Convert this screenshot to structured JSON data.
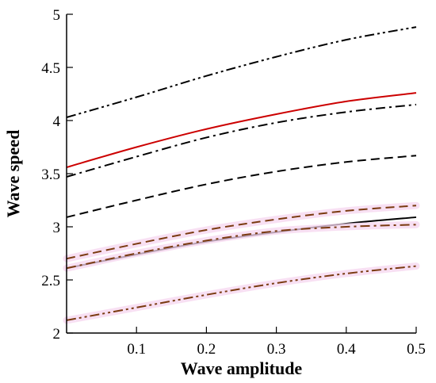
{
  "chart_data": {
    "type": "line",
    "title": "",
    "xlabel": "Wave amplitude",
    "ylabel": "Wave speed",
    "xlim": [
      0,
      0.5
    ],
    "ylim": [
      2,
      5
    ],
    "x_ticks": [
      0.1,
      0.2,
      0.3,
      0.4,
      0.5
    ],
    "x_tick_labels": [
      "0.1",
      "0.2",
      "0.3",
      "0.4",
      "0.5"
    ],
    "y_ticks": [
      2,
      2.5,
      3,
      3.5,
      4,
      4.5,
      5
    ],
    "y_tick_labels": [
      "2",
      "2.5",
      "3",
      "3.5",
      "4",
      "4.5",
      "5"
    ],
    "grid": false,
    "legend": "none",
    "series": [
      {
        "x": [
          0,
          0.1,
          0.2,
          0.3,
          0.4,
          0.5
        ],
        "values": [
          4.03,
          4.22,
          4.42,
          4.6,
          4.76,
          4.88
        ],
        "color": "#000000",
        "dash": "dash-dot-dot",
        "halo": false
      },
      {
        "x": [
          0,
          0.1,
          0.2,
          0.3,
          0.4,
          0.5
        ],
        "values": [
          3.56,
          3.75,
          3.92,
          4.06,
          4.18,
          4.26
        ],
        "color": "#cc0000",
        "dash": "solid",
        "halo": false
      },
      {
        "x": [
          0,
          0.1,
          0.2,
          0.3,
          0.4,
          0.5
        ],
        "values": [
          3.47,
          3.66,
          3.84,
          3.98,
          4.08,
          4.15
        ],
        "color": "#000000",
        "dash": "dash-dot",
        "halo": false
      },
      {
        "x": [
          0,
          0.1,
          0.2,
          0.3,
          0.4,
          0.5
        ],
        "values": [
          3.09,
          3.25,
          3.4,
          3.52,
          3.61,
          3.67
        ],
        "color": "#000000",
        "dash": "dashed",
        "halo": false
      },
      {
        "x": [
          0,
          0.1,
          0.2,
          0.3,
          0.4,
          0.5
        ],
        "values": [
          2.7,
          2.84,
          2.97,
          3.07,
          3.15,
          3.2
        ],
        "color": "#7a3a10",
        "dash": "dashed",
        "halo": true
      },
      {
        "x": [
          0,
          0.1,
          0.2,
          0.3,
          0.4,
          0.5
        ],
        "values": [
          2.61,
          2.74,
          2.86,
          2.95,
          3.03,
          3.09
        ],
        "color": "#000000",
        "dash": "solid",
        "halo": false
      },
      {
        "x": [
          0,
          0.1,
          0.2,
          0.3,
          0.4,
          0.5
        ],
        "values": [
          2.61,
          2.75,
          2.87,
          2.96,
          3.0,
          3.02
        ],
        "color": "#7a3a10",
        "dash": "dash-dot",
        "halo": true
      },
      {
        "x": [
          0,
          0.1,
          0.2,
          0.3,
          0.4,
          0.5
        ],
        "values": [
          2.12,
          2.24,
          2.36,
          2.47,
          2.56,
          2.63
        ],
        "color": "#7a3a10",
        "dash": "dash-dot-dot",
        "halo": true
      }
    ]
  }
}
